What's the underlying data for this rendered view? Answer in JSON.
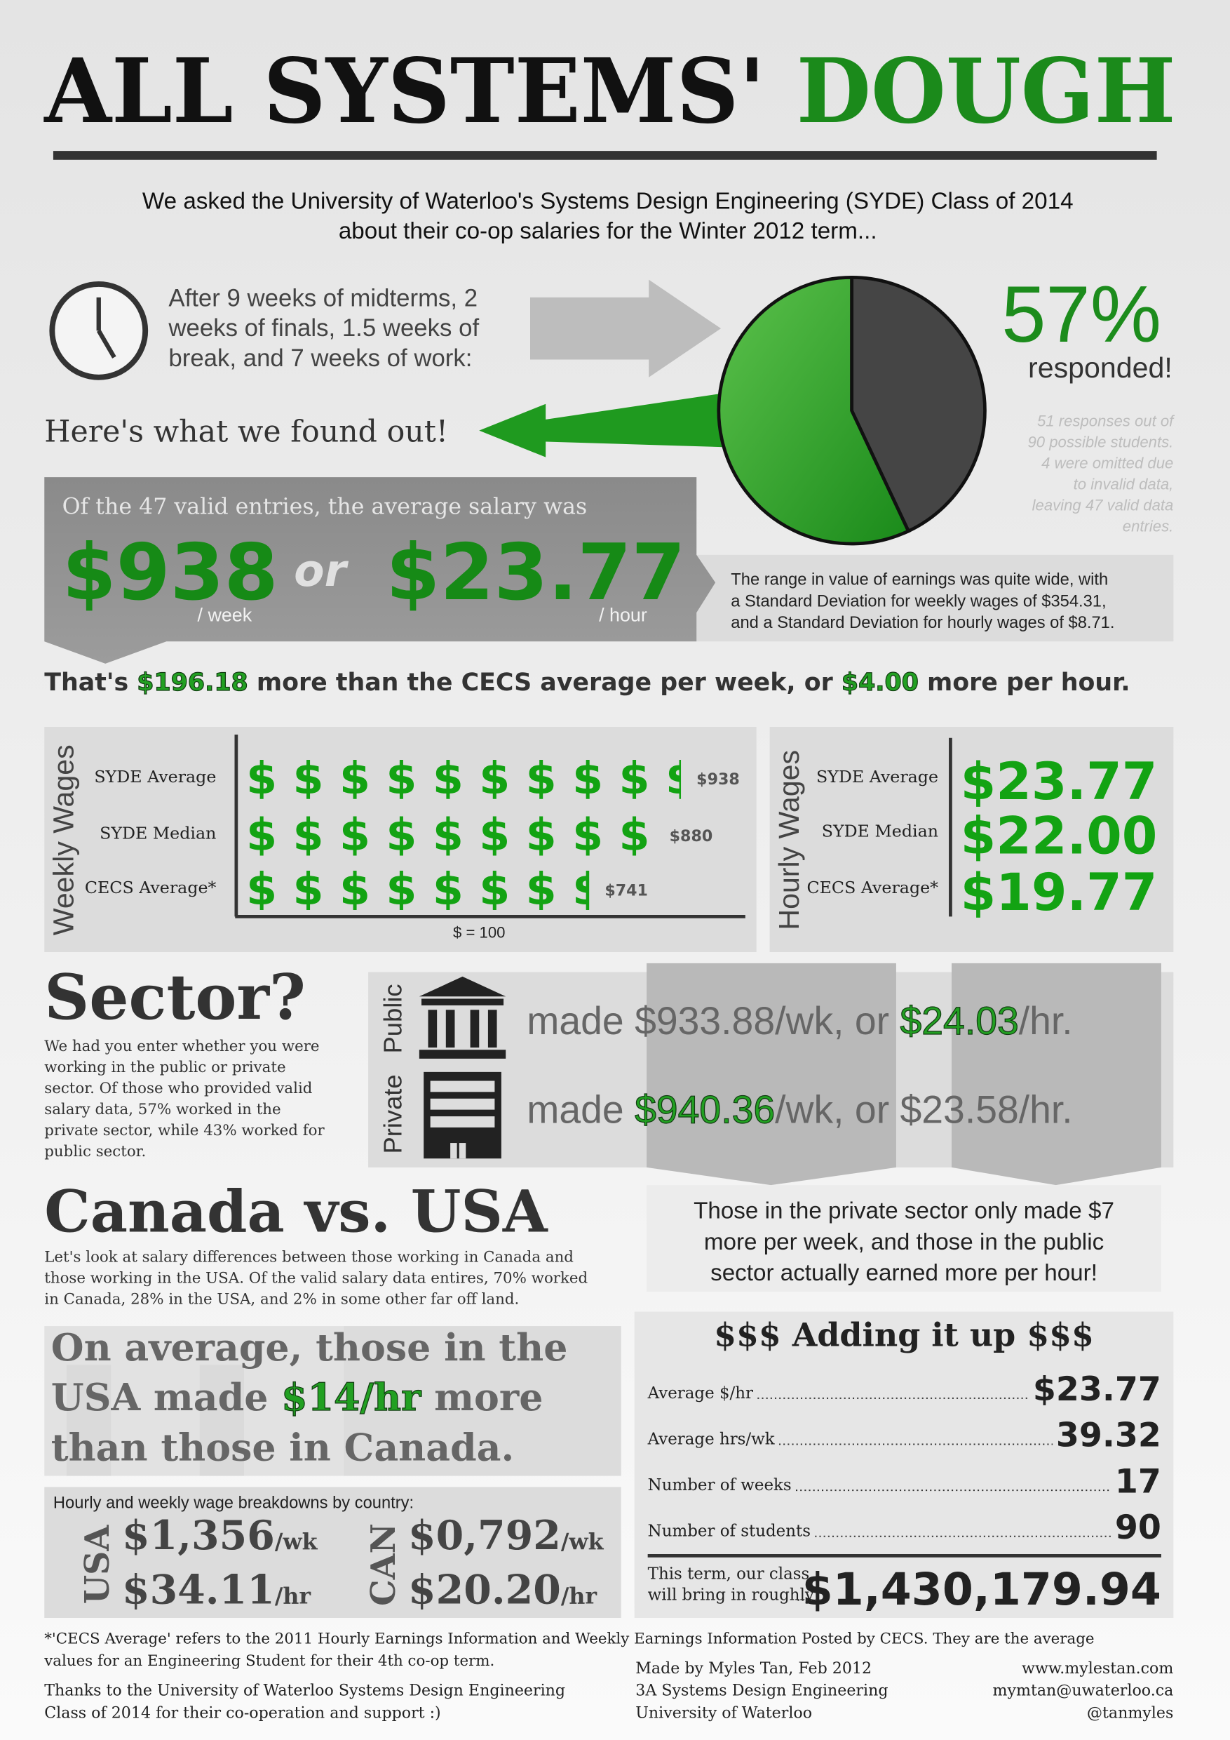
{
  "title": {
    "part1": "ALL SYSTEMS'",
    "part2": "DOUGH"
  },
  "intro": [
    "We asked the University of Waterloo's Systems Design Engineering (SYDE) Class of 2014",
    "about their co-op salaries for the Winter 2012 term..."
  ],
  "timeline": [
    "After 9 weeks of midterms, 2",
    "weeks of finals, 1.5 weeks of",
    "break, and 7 weeks of work:"
  ],
  "found": "Here's what we found out!",
  "response": {
    "value_label": "57%",
    "caption": "responded!",
    "pie": [
      {
        "value": 57,
        "color": "#2e9e2a"
      },
      {
        "value": 43,
        "color": "#454545"
      }
    ],
    "note": [
      "51 responses out of",
      "90 possible students.",
      "4 were omitted due",
      "to invalid data,",
      "leaving 47 valid data",
      "entries."
    ]
  },
  "average": {
    "lead": "Of the 47 valid entries, the average salary was",
    "weekly": "$938",
    "weekly_unit": "/ week",
    "or": "or",
    "hourly": "$23.77",
    "hourly_unit": "/ hour"
  },
  "range_note": [
    "The range in value of earnings was quite wide, with",
    "a Standard Deviation for weekly wages of $354.31,",
    "and a Standard Deviation for hourly wages of $8.71."
  ],
  "comparison": [
    "That's ",
    "$196.18",
    " more than the CECS average per week, or ",
    "$4.00",
    " more per hour."
  ],
  "weekly_wages": {
    "axis_label": "Weekly Wages",
    "symbol": "$",
    "symbol_value": 100,
    "unit_label": "$ = 100",
    "categories": [
      "SYDE Average",
      "SYDE Median",
      "CECS Average*"
    ],
    "values": [
      938,
      880,
      741
    ],
    "value_labels": [
      "$938",
      "$880",
      "$741"
    ],
    "color": "#13a313"
  },
  "hourly_wages": {
    "axis_label": "Hourly Wages",
    "categories": [
      "SYDE Average",
      "SYDE Median",
      "CECS Average*"
    ],
    "values": [
      "$23.77",
      "$22.00",
      "$19.77"
    ]
  },
  "sector": {
    "title": "Sector?",
    "text": [
      "We had you enter whether you were",
      "working in the public or private",
      "sector. Of those who provided valid",
      "salary data, 57% worked in the",
      "private sector, while 43% worked for",
      "public sector."
    ],
    "public_label": "Public",
    "private_label": "Private",
    "public": [
      "made $933.88/wk, or ",
      "$24.03",
      "/hr."
    ],
    "private": [
      "made ",
      "$940.36",
      "/wk, or $23.58/hr."
    ],
    "note": [
      "Those in the private sector only made $7",
      "more per week, and those in the public",
      "sector actually earned more per hour!"
    ]
  },
  "country": {
    "title": "Canada vs. USA",
    "text": [
      "Let's look at salary differences between those working in Canada and",
      "those working in the USA. Of the valid salary data entires, 70% worked",
      "in Canada, 28% in the USA, and 2% in some other far off land."
    ],
    "headline": [
      [
        "On average, those in the"
      ],
      [
        "USA made ",
        "$14/hr",
        " more"
      ],
      [
        "than those in Canada."
      ]
    ],
    "breakdown_title": "Hourly and weekly wage breakdowns by country:",
    "usa": {
      "label": "USA",
      "weekly": "$1,356",
      "weekly_unit": "/wk",
      "hourly": "$34.11",
      "hourly_unit": "/hr"
    },
    "can": {
      "label": "CAN",
      "weekly": "$0,792",
      "weekly_unit": "/wk",
      "hourly": "$20.20",
      "hourly_unit": "/hr"
    }
  },
  "total": {
    "title": "$$$ Adding it up $$$",
    "rows": [
      {
        "label": "Average $/hr",
        "value": "$23.77"
      },
      {
        "label": "Average hrs/wk",
        "value": "39.32"
      },
      {
        "label": "Number of weeks",
        "value": "17"
      },
      {
        "label": "Number of students",
        "value": "90"
      }
    ],
    "result_label": [
      "This term, our class",
      "will bring in roughly"
    ],
    "result": "$1,430,179.94"
  },
  "footer": {
    "note": [
      "*'CECS Average' refers to the 2011 Hourly Earnings Information and Weekly Earnings Information Posted by CECS. They are the average",
      "values for an Engineering Student for their 4th co-op term."
    ],
    "thanks": [
      "Thanks to the University of Waterloo Systems Design Engineering",
      "Class of 2014 for their co-operation and support :)"
    ],
    "credit": [
      "Made by Myles Tan, Feb 2012",
      "3A Systems Design Engineering",
      "University of Waterloo"
    ],
    "contact": [
      "www.mylestan.com",
      "mymtan@uwaterloo.ca",
      "@tanmyles"
    ]
  }
}
